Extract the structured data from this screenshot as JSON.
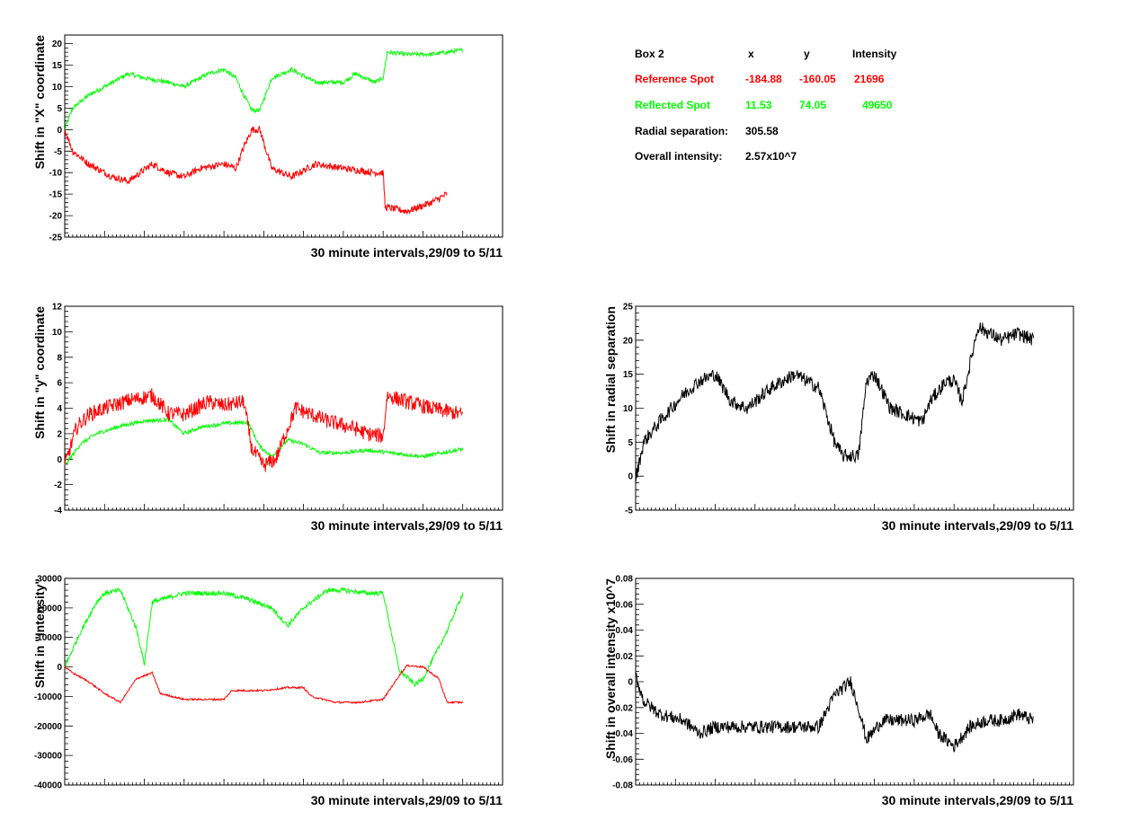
{
  "colors": {
    "reference": "#ff0000",
    "reflected": "#00ff00",
    "black": "#000000",
    "background": "#ffffff"
  },
  "info_table": {
    "title": "Box 2",
    "col_x": "x",
    "col_y": "y",
    "col_intensity": "Intensity",
    "reference": {
      "label": "Reference Spot",
      "x": "-184.88",
      "y": "-160.05",
      "intensity": "21696"
    },
    "reflected": {
      "label": "Reflected Spot",
      "x": "11.53",
      "y": "74.05",
      "intensity": "49650"
    },
    "radial": {
      "label": "Radial separation:",
      "value": "305.58"
    },
    "overall": {
      "label": "Overall intensity:",
      "value": "2.57x10^7"
    }
  },
  "chart_data": [
    {
      "id": "x-shift",
      "type": "line",
      "xlabel": "30 minute intervals,29/09 to 5/11",
      "ylabel": "Shift in \"X\" coordinate",
      "ylim": [
        -25,
        22
      ],
      "yticks": [
        "20",
        "15",
        "10",
        "5",
        "0",
        "-5",
        "-10",
        "-15",
        "-20",
        "-25"
      ],
      "ytick_values": [
        20,
        15,
        10,
        5,
        0,
        -5,
        -10,
        -15,
        -20,
        -25
      ],
      "xlim": [
        0,
        1.1
      ],
      "series": [
        {
          "color": "#00ff00",
          "noise": 0.5,
          "x": [
            0,
            0.02,
            0.06,
            0.12,
            0.16,
            0.2,
            0.26,
            0.3,
            0.36,
            0.4,
            0.43,
            0.45,
            0.47,
            0.49,
            0.52,
            0.57,
            0.63,
            0.7,
            0.73,
            0.78,
            0.8,
            0.81,
            0.86,
            0.92,
            1.0
          ],
          "y": [
            0,
            5,
            8,
            11,
            13,
            12,
            11,
            10,
            13,
            14,
            12,
            8,
            4.5,
            4.5,
            12,
            14,
            11,
            11,
            13,
            11,
            12,
            18,
            17.5,
            17.5,
            18.5
          ]
        },
        {
          "color": "#ff0000",
          "noise": 0.8,
          "x": [
            0,
            0.02,
            0.06,
            0.12,
            0.16,
            0.22,
            0.26,
            0.3,
            0.34,
            0.4,
            0.43,
            0.45,
            0.47,
            0.49,
            0.52,
            0.57,
            0.63,
            0.7,
            0.78,
            0.8,
            0.805,
            0.86,
            0.92,
            0.96
          ],
          "y": [
            0,
            -5,
            -8,
            -11,
            -12,
            -8,
            -10,
            -11,
            -9,
            -8,
            -9,
            -4,
            0,
            0,
            -9,
            -11,
            -8,
            -9,
            -10,
            -10,
            -18,
            -19,
            -17,
            -15
          ]
        }
      ]
    },
    {
      "id": "y-shift",
      "type": "line",
      "xlabel": "30 minute intervals,29/09 to 5/11",
      "ylabel": "Shift in \"y\" coordinate",
      "ylim": [
        -4,
        12
      ],
      "yticks": [
        "12",
        "10",
        "8",
        "6",
        "4",
        "2",
        "0",
        "-2",
        "-4"
      ],
      "ytick_values": [
        12,
        10,
        8,
        6,
        4,
        2,
        0,
        -2,
        -4
      ],
      "xlim": [
        0,
        1.1
      ],
      "series": [
        {
          "color": "#00ff00",
          "noise": 0.15,
          "x": [
            0,
            0.04,
            0.08,
            0.14,
            0.2,
            0.26,
            0.3,
            0.34,
            0.4,
            0.46,
            0.49,
            0.52,
            0.56,
            0.6,
            0.64,
            0.7,
            0.76,
            0.82,
            0.9,
            1.0
          ],
          "y": [
            -0.5,
            1.2,
            2.0,
            2.6,
            3.0,
            3.1,
            2.0,
            2.5,
            2.8,
            2.9,
            1.0,
            0.2,
            1.5,
            1.2,
            0.5,
            0.5,
            0.7,
            0.5,
            0.2,
            0.8
          ]
        },
        {
          "color": "#ff0000",
          "noise": 0.6,
          "x": [
            0,
            0.03,
            0.06,
            0.1,
            0.16,
            0.22,
            0.26,
            0.3,
            0.36,
            0.4,
            0.45,
            0.47,
            0.5,
            0.53,
            0.58,
            0.62,
            0.66,
            0.72,
            0.76,
            0.8,
            0.81,
            0.86,
            0.92,
            1.0
          ],
          "y": [
            -0.5,
            2.5,
            3.5,
            4.0,
            4.6,
            5.0,
            3.6,
            3.5,
            4.5,
            4.2,
            4.5,
            0.8,
            -0.5,
            0.0,
            4.0,
            3.5,
            3.0,
            2.5,
            2.0,
            1.8,
            5.0,
            4.5,
            4.0,
            3.5
          ]
        }
      ]
    },
    {
      "id": "intensity-shift",
      "type": "line",
      "xlabel": "30 minute intervals,29/09 to 5/11",
      "ylabel": "Shift in \"Intensity\"",
      "ylim": [
        -40000,
        30000
      ],
      "yticks": [
        "30000",
        "20000",
        "10000",
        "0",
        "-10000",
        "-20000",
        "-30000",
        "-40000"
      ],
      "ytick_values": [
        30000,
        20000,
        10000,
        0,
        -10000,
        -20000,
        -30000,
        -40000
      ],
      "xlim": [
        0,
        1.1
      ],
      "series": [
        {
          "color": "#00ff00",
          "noise": 800,
          "x": [
            0,
            0.04,
            0.08,
            0.1,
            0.14,
            0.18,
            0.2,
            0.22,
            0.3,
            0.4,
            0.46,
            0.52,
            0.56,
            0.6,
            0.66,
            0.7,
            0.76,
            0.8,
            0.84,
            0.88,
            0.9,
            0.96,
            1.0
          ],
          "y": [
            0,
            12000,
            22000,
            25000,
            26000,
            13000,
            1000,
            22000,
            25000,
            25000,
            23000,
            20000,
            14000,
            20000,
            26000,
            26000,
            25000,
            25000,
            -1000,
            -6000,
            -4000,
            12000,
            25000
          ]
        },
        {
          "color": "#ff0000",
          "noise": 300,
          "x": [
            0,
            0.02,
            0.06,
            0.1,
            0.14,
            0.18,
            0.22,
            0.24,
            0.3,
            0.4,
            0.42,
            0.5,
            0.56,
            0.6,
            0.62,
            0.68,
            0.74,
            0.8,
            0.84,
            0.86,
            0.9,
            0.94,
            0.96,
            1.0
          ],
          "y": [
            0,
            -2000,
            -5000,
            -9000,
            -12000,
            -4000,
            -2000,
            -9000,
            -11000,
            -11000,
            -8000,
            -8000,
            -7000,
            -7000,
            -10000,
            -12000,
            -12000,
            -11000,
            -3000,
            500,
            0,
            -4000,
            -12000,
            -12000
          ]
        }
      ]
    },
    {
      "id": "radial-shift",
      "type": "line",
      "xlabel": "30 minute intervals,29/09 to 5/11",
      "ylabel": "Shift in radial separation",
      "ylim": [
        -5,
        25
      ],
      "yticks": [
        "25",
        "20",
        "15",
        "10",
        "5",
        "0",
        "-5"
      ],
      "ytick_values": [
        25,
        20,
        15,
        10,
        5,
        0,
        -5
      ],
      "xlim": [
        0,
        1.1
      ],
      "series": [
        {
          "color": "#000000",
          "noise": 1.0,
          "x": [
            0,
            0.02,
            0.06,
            0.12,
            0.16,
            0.2,
            0.24,
            0.28,
            0.34,
            0.4,
            0.46,
            0.5,
            0.52,
            0.56,
            0.58,
            0.6,
            0.64,
            0.68,
            0.72,
            0.74,
            0.78,
            0.8,
            0.82,
            0.86,
            0.92,
            0.96,
            1.0
          ],
          "y": [
            -0.5,
            5,
            8,
            12,
            14,
            15,
            11,
            10,
            13,
            15,
            13,
            5,
            3,
            3,
            14,
            15,
            10,
            9,
            8,
            11,
            14,
            14,
            11,
            22,
            20,
            21,
            20
          ]
        }
      ]
    },
    {
      "id": "overall-shift",
      "type": "line",
      "xlabel": "30 minute intervals,29/09 to 5/11",
      "ylabel": "Shift in overall intensity x10^7",
      "ylim": [
        -0.08,
        0.08
      ],
      "yticks": [
        "0.08",
        "0.06",
        "0.04",
        "0.02",
        "0",
        "-0.02",
        "-0.04",
        "-0.06",
        "-0.08"
      ],
      "ytick_values": [
        0.08,
        0.06,
        0.04,
        0.02,
        0,
        -0.02,
        -0.04,
        -0.06,
        -0.08
      ],
      "xlim": [
        0,
        1.1
      ],
      "series": [
        {
          "color": "#000000",
          "noise": 0.005,
          "x": [
            0,
            0.02,
            0.06,
            0.12,
            0.16,
            0.2,
            0.26,
            0.32,
            0.4,
            0.46,
            0.5,
            0.54,
            0.56,
            0.58,
            0.62,
            0.66,
            0.7,
            0.74,
            0.76,
            0.8,
            0.84,
            0.88,
            0.92,
            0.96,
            1.0
          ],
          "y": [
            0.005,
            -0.015,
            -0.025,
            -0.03,
            -0.04,
            -0.035,
            -0.035,
            -0.035,
            -0.035,
            -0.035,
            -0.01,
            0.0,
            -0.02,
            -0.045,
            -0.03,
            -0.03,
            -0.03,
            -0.025,
            -0.04,
            -0.05,
            -0.035,
            -0.03,
            -0.03,
            -0.025,
            -0.03
          ]
        }
      ]
    }
  ]
}
